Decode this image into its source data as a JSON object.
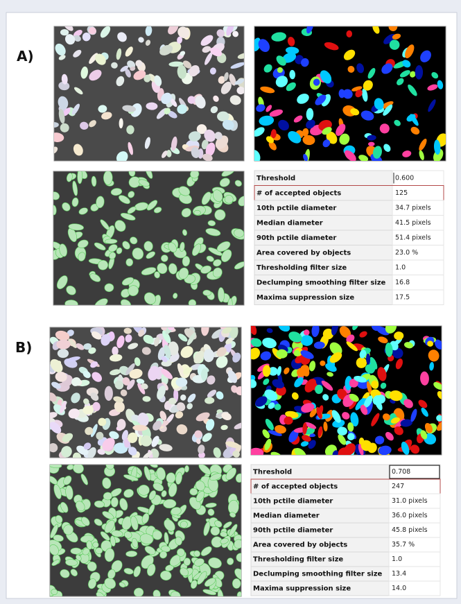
{
  "panels": [
    {
      "label": "A)",
      "table": {
        "rows": [
          [
            "Threshold",
            "0.600"
          ],
          [
            "# of accepted objects",
            "125"
          ],
          [
            "10th pctile diameter",
            "34.7 pixels"
          ],
          [
            "Median diameter",
            "41.5 pixels"
          ],
          [
            "90th pctile diameter",
            "51.4 pixels"
          ],
          [
            "Area covered by objects",
            "23.0 %"
          ],
          [
            "Thresholding filter size",
            "1.0"
          ],
          [
            "Declumping smoothing filter size",
            "16.8"
          ],
          [
            "Maxima suppression size",
            "17.5"
          ]
        ]
      }
    },
    {
      "label": "B)",
      "table": {
        "rows": [
          [
            "Threshold",
            "0.708"
          ],
          [
            "# of accepted objects",
            "247"
          ],
          [
            "10th pctile diameter",
            "31.0 pixels"
          ],
          [
            "Median diameter",
            "36.0 pixels"
          ],
          [
            "90th pctile diameter",
            "45.8 pixels"
          ],
          [
            "Area covered by objects",
            "35.7 %"
          ],
          [
            "Thresholding filter size",
            "1.0"
          ],
          [
            "Declumping smoothing filter size",
            "13.4"
          ],
          [
            "Maxima suppression size",
            "14.0"
          ]
        ]
      }
    }
  ]
}
